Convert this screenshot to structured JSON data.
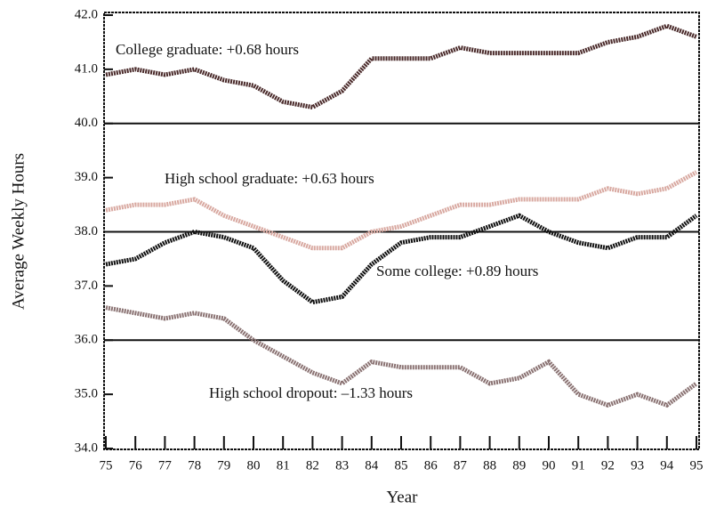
{
  "chart_data": {
    "type": "line",
    "x_label": "Year",
    "y_label": "Average Weekly Hours",
    "x": [
      75,
      76,
      77,
      78,
      79,
      80,
      81,
      82,
      83,
      84,
      85,
      86,
      87,
      88,
      89,
      90,
      91,
      92,
      93,
      94,
      95
    ],
    "xlim": [
      75,
      95
    ],
    "xticks": [
      75,
      76,
      77,
      78,
      79,
      80,
      81,
      82,
      83,
      84,
      85,
      86,
      87,
      88,
      89,
      90,
      91,
      92,
      93,
      94,
      95
    ],
    "ylim": [
      34,
      42
    ],
    "yticks": [
      {
        "value": 34,
        "label": "34.0"
      },
      {
        "value": 35,
        "label": "35.0"
      },
      {
        "value": 36,
        "label": "36.0"
      },
      {
        "value": 37,
        "label": "37.0"
      },
      {
        "value": 38,
        "label": "38.0"
      },
      {
        "value": 39,
        "label": "39.0"
      },
      {
        "value": 40,
        "label": "40.0"
      },
      {
        "value": 41,
        "label": "41.0"
      },
      {
        "value": 42,
        "label": "42.0"
      }
    ],
    "reference_lines": [
      36,
      38,
      40
    ],
    "series": [
      {
        "color": "#4a2a2a",
        "values": [
          40.9,
          41.0,
          40.9,
          41.0,
          40.8,
          40.7,
          40.4,
          40.3,
          40.6,
          41.2,
          41.2,
          41.2,
          41.4,
          41.3,
          41.3,
          41.3,
          41.3,
          41.5,
          41.6,
          41.8,
          41.6
        ]
      },
      {
        "color": "#d8a8a0",
        "values": [
          38.4,
          38.5,
          38.5,
          38.6,
          38.3,
          38.1,
          37.9,
          37.7,
          37.7,
          38.0,
          38.1,
          38.3,
          38.5,
          38.5,
          38.6,
          38.6,
          38.6,
          38.8,
          38.7,
          38.8,
          39.1
        ]
      },
      {
        "color": "#111111",
        "values": [
          37.4,
          37.5,
          37.8,
          38.0,
          37.9,
          37.7,
          37.1,
          36.7,
          36.8,
          37.4,
          37.8,
          37.9,
          37.9,
          38.1,
          38.3,
          38.0,
          37.8,
          37.7,
          37.9,
          37.9,
          38.3
        ]
      },
      {
        "color": "#8a7272",
        "values": [
          36.6,
          36.5,
          36.4,
          36.5,
          36.4,
          36.0,
          35.7,
          35.4,
          35.2,
          35.6,
          35.5,
          35.5,
          35.5,
          35.2,
          35.3,
          35.6,
          35.0,
          34.8,
          35.0,
          34.8,
          35.2
        ]
      }
    ],
    "annotations": [
      "College graduate: +0.68 hours",
      "High school graduate: +0.63 hours",
      "Some college: +0.89 hours",
      "High school dropout: –1.33 hours"
    ]
  }
}
